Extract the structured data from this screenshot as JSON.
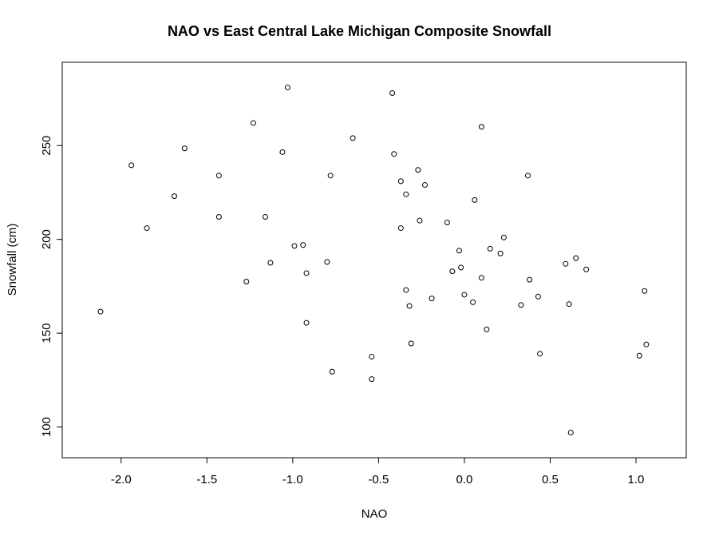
{
  "chart_data": {
    "type": "scatter",
    "title": "NAO vs East Central Lake Michigan Composite Snowfall",
    "xlabel": "NAO",
    "ylabel": "Snowfall (cm)",
    "xlim": [
      -2.25,
      1.2
    ],
    "ylim": [
      90,
      288
    ],
    "x_ticks": [
      -2.0,
      -1.5,
      -1.0,
      -0.5,
      0.0,
      0.5,
      1.0
    ],
    "x_tick_labels": [
      "-2.0",
      "-1.5",
      "-1.0",
      "-0.5",
      "0.0",
      "0.5",
      "1.0"
    ],
    "y_ticks": [
      100,
      150,
      200,
      250
    ],
    "y_tick_labels": [
      "100",
      "150",
      "200",
      "250"
    ],
    "grid": false,
    "legend": "none",
    "marker": "open-circle",
    "points": [
      {
        "x": -2.12,
        "y": 161.5
      },
      {
        "x": -1.94,
        "y": 239.5
      },
      {
        "x": -1.85,
        "y": 206
      },
      {
        "x": -1.69,
        "y": 223
      },
      {
        "x": -1.63,
        "y": 248.5
      },
      {
        "x": -1.43,
        "y": 234
      },
      {
        "x": -1.43,
        "y": 212
      },
      {
        "x": -1.27,
        "y": 177.5
      },
      {
        "x": -1.23,
        "y": 262
      },
      {
        "x": -1.16,
        "y": 212
      },
      {
        "x": -1.13,
        "y": 187.5
      },
      {
        "x": -1.06,
        "y": 246.5
      },
      {
        "x": -1.03,
        "y": 281
      },
      {
        "x": -0.99,
        "y": 196.5
      },
      {
        "x": -0.94,
        "y": 197
      },
      {
        "x": -0.92,
        "y": 182
      },
      {
        "x": -0.92,
        "y": 155.5
      },
      {
        "x": -0.8,
        "y": 188
      },
      {
        "x": -0.78,
        "y": 234
      },
      {
        "x": -0.77,
        "y": 129.5
      },
      {
        "x": -0.65,
        "y": 254
      },
      {
        "x": -0.54,
        "y": 137.5
      },
      {
        "x": -0.54,
        "y": 125.5
      },
      {
        "x": -0.42,
        "y": 278
      },
      {
        "x": -0.41,
        "y": 245.5
      },
      {
        "x": -0.37,
        "y": 231
      },
      {
        "x": -0.37,
        "y": 206
      },
      {
        "x": -0.34,
        "y": 224
      },
      {
        "x": -0.34,
        "y": 173
      },
      {
        "x": -0.32,
        "y": 164.5
      },
      {
        "x": -0.31,
        "y": 144.5
      },
      {
        "x": -0.27,
        "y": 237
      },
      {
        "x": -0.26,
        "y": 210
      },
      {
        "x": -0.23,
        "y": 229
      },
      {
        "x": -0.19,
        "y": 168.5
      },
      {
        "x": -0.1,
        "y": 209
      },
      {
        "x": -0.07,
        "y": 183
      },
      {
        "x": -0.03,
        "y": 194
      },
      {
        "x": -0.02,
        "y": 185
      },
      {
        "x": 0.0,
        "y": 170.5
      },
      {
        "x": 0.05,
        "y": 166.5
      },
      {
        "x": 0.06,
        "y": 221
      },
      {
        "x": 0.1,
        "y": 260
      },
      {
        "x": 0.1,
        "y": 179.5
      },
      {
        "x": 0.13,
        "y": 152
      },
      {
        "x": 0.15,
        "y": 195
      },
      {
        "x": 0.21,
        "y": 192.5
      },
      {
        "x": 0.23,
        "y": 201
      },
      {
        "x": 0.33,
        "y": 165
      },
      {
        "x": 0.37,
        "y": 234
      },
      {
        "x": 0.38,
        "y": 178.5
      },
      {
        "x": 0.43,
        "y": 169.5
      },
      {
        "x": 0.44,
        "y": 139
      },
      {
        "x": 0.59,
        "y": 187
      },
      {
        "x": 0.61,
        "y": 165.5
      },
      {
        "x": 0.62,
        "y": 97
      },
      {
        "x": 0.65,
        "y": 190
      },
      {
        "x": 0.71,
        "y": 184
      },
      {
        "x": 1.02,
        "y": 138
      },
      {
        "x": 1.05,
        "y": 172.5
      },
      {
        "x": 1.06,
        "y": 144
      }
    ]
  }
}
